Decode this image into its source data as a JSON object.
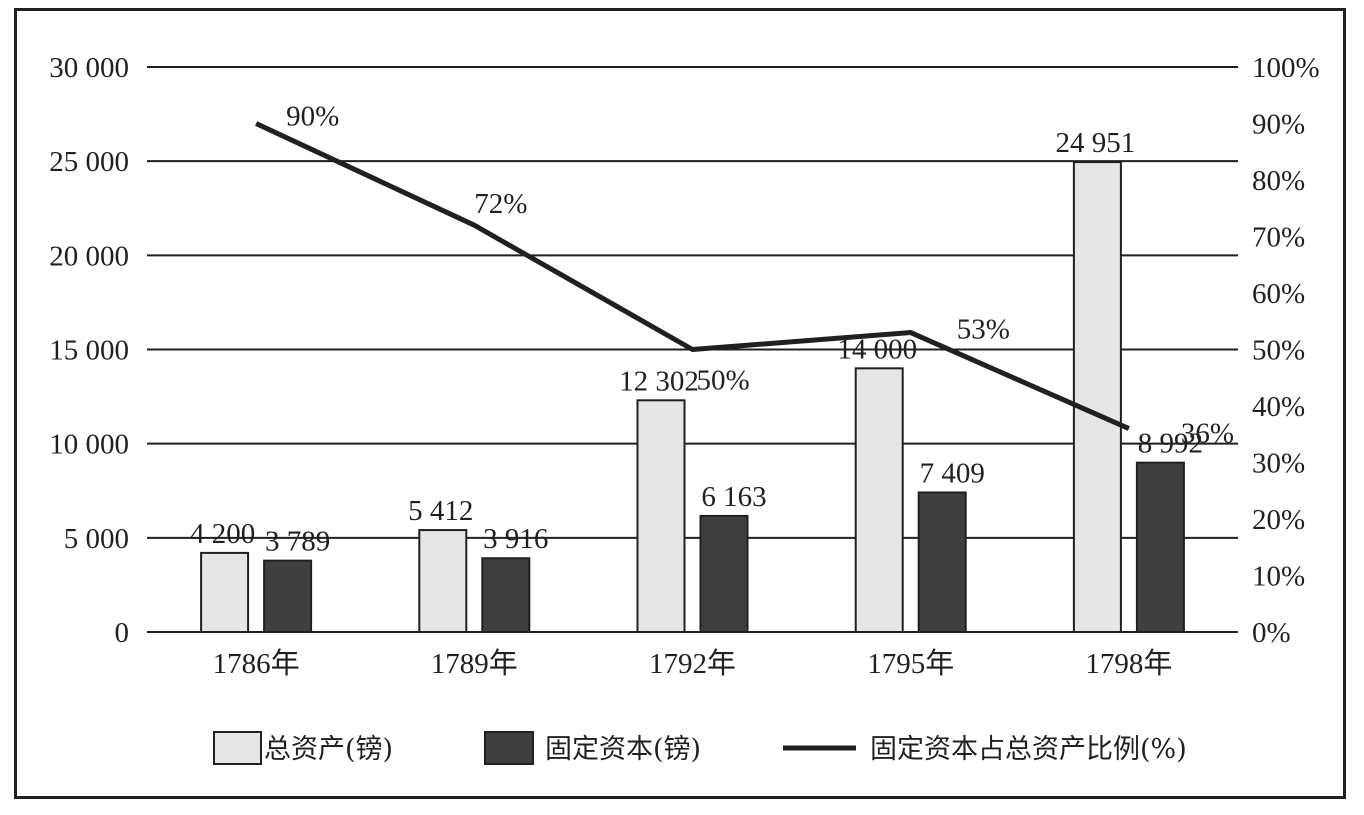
{
  "chart_data": {
    "type": "bar",
    "categories": [
      "1786年",
      "1789年",
      "1792年",
      "1795年",
      "1798年"
    ],
    "series": [
      {
        "name": "总资产(镑)",
        "type": "bar",
        "axis": "left",
        "color": "#e6e6e6",
        "values": [
          4200,
          5412,
          12302,
          14000,
          24951
        ],
        "value_labels": [
          "4 200",
          "5 412",
          "12 302",
          "14 000",
          "24 951"
        ]
      },
      {
        "name": "固定资本(镑)",
        "type": "bar",
        "axis": "left",
        "color": "#3f3f3f",
        "values": [
          3789,
          3916,
          6163,
          7409,
          8992
        ],
        "value_labels": [
          "3 789",
          "3 916",
          "6 163",
          "7 409",
          "8 992"
        ]
      },
      {
        "name": "固定资本占总资产比例(%)",
        "type": "line",
        "axis": "right",
        "color": "#231f20",
        "values": [
          90,
          72,
          50,
          53,
          36
        ],
        "value_labels": [
          "90%",
          "72%",
          "50%",
          "53%",
          "36%"
        ]
      }
    ],
    "y_left": {
      "ylim": [
        0,
        30000
      ],
      "ticks": [
        0,
        5000,
        10000,
        15000,
        20000,
        25000,
        30000
      ],
      "tick_labels": [
        "0",
        "5 000",
        "10 000",
        "15 000",
        "20 000",
        "25 000",
        "30 000"
      ]
    },
    "y_right": {
      "ylim": [
        0,
        100
      ],
      "ticks": [
        0,
        10,
        20,
        30,
        40,
        50,
        60,
        70,
        80,
        90,
        100
      ],
      "tick_labels": [
        "0%",
        "10%",
        "20%",
        "30%",
        "40%",
        "50%",
        "60%",
        "70%",
        "80%",
        "90%",
        "100%"
      ]
    },
    "grid": true,
    "legend": "bottom"
  }
}
